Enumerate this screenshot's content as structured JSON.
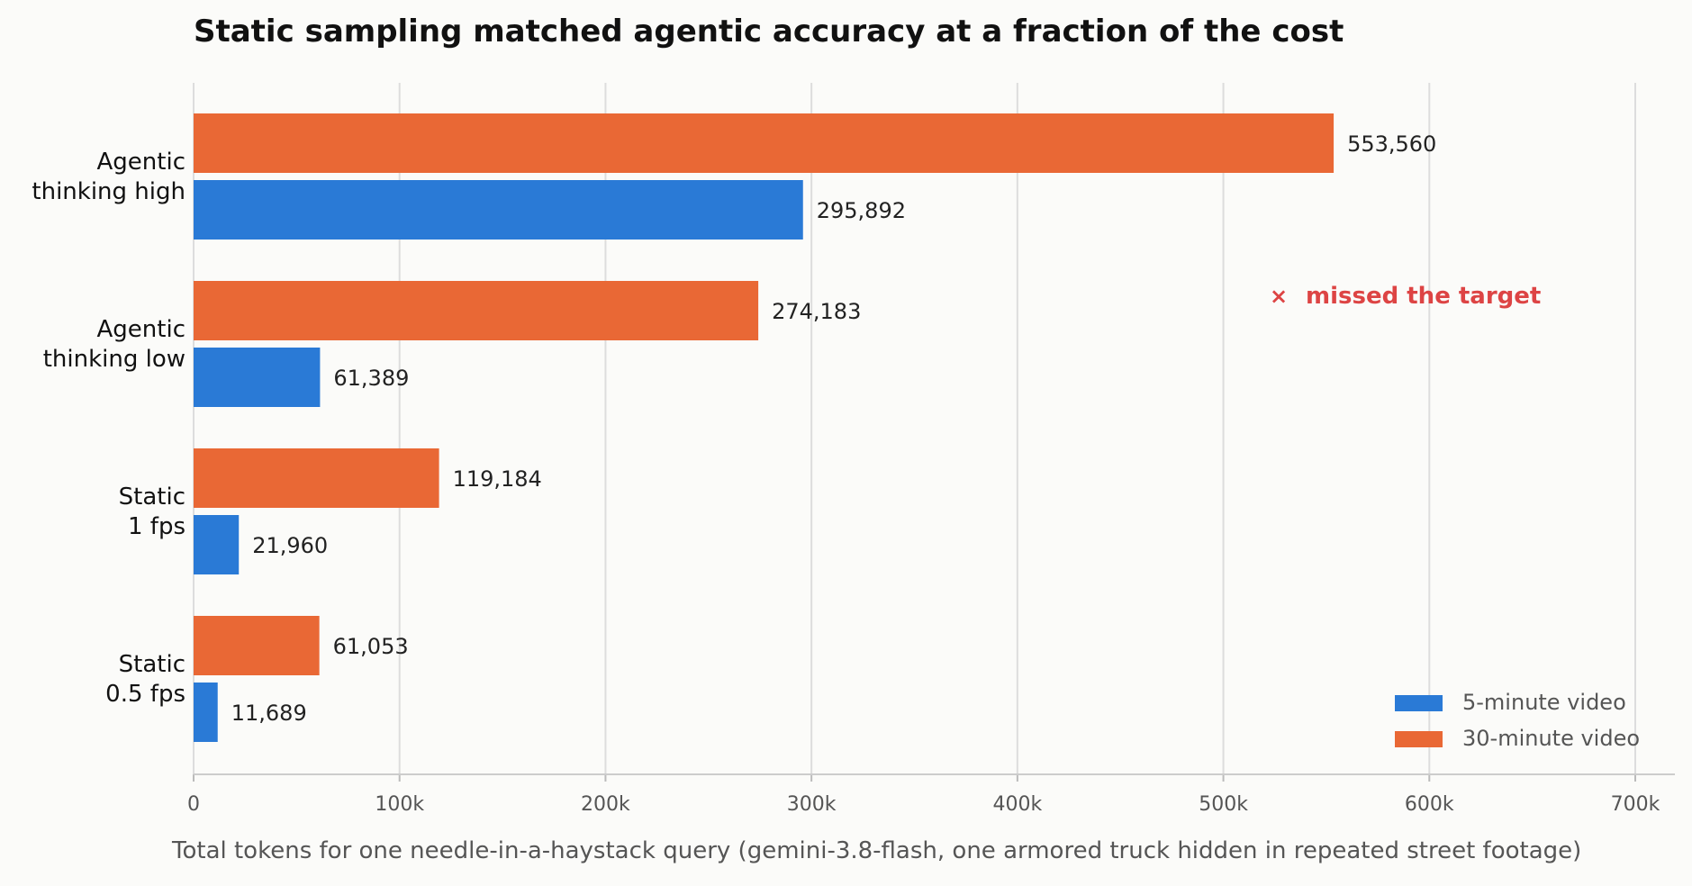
{
  "chart_data": {
    "type": "bar",
    "orientation": "horizontal",
    "title": "Static sampling matched agentic accuracy at a fraction of the cost",
    "xlabel": "Total tokens for one needle-in-a-haystack query (gemini-3.8-flash, one armored truck hidden in repeated street footage)",
    "ylabel": "",
    "xlim": [
      0,
      720000
    ],
    "xticks": [
      {
        "value": 0,
        "label": "0"
      },
      {
        "value": 100000,
        "label": "100k"
      },
      {
        "value": 200000,
        "label": "200k"
      },
      {
        "value": 300000,
        "label": "300k"
      },
      {
        "value": 400000,
        "label": "400k"
      },
      {
        "value": 500000,
        "label": "500k"
      },
      {
        "value": 600000,
        "label": "600k"
      },
      {
        "value": 700000,
        "label": "700k"
      }
    ],
    "grid": "vertical",
    "categories": [
      [
        "Agentic",
        "thinking high"
      ],
      [
        "Agentic",
        "thinking low"
      ],
      [
        "Static",
        "1 fps"
      ],
      [
        "Static",
        "0.5 fps"
      ]
    ],
    "series": [
      {
        "name": "30-minute video",
        "color": "#e96835",
        "values": [
          553560,
          274183,
          119184,
          61053
        ],
        "labels": [
          "553,560",
          "274,183",
          "119,184",
          "61,053"
        ]
      },
      {
        "name": "5-minute video",
        "color": "#2a7ad6",
        "values": [
          295892,
          61389,
          21960,
          11689
        ],
        "labels": [
          "295,892",
          "61,389",
          "21,960",
          "11,689"
        ]
      }
    ],
    "legend": {
      "position": "bottom-right",
      "order": [
        "5-minute video",
        "30-minute video"
      ]
    },
    "annotation": {
      "marker": "×",
      "text": "missed the target",
      "color": "#dd4444",
      "category_index": 1
    }
  }
}
